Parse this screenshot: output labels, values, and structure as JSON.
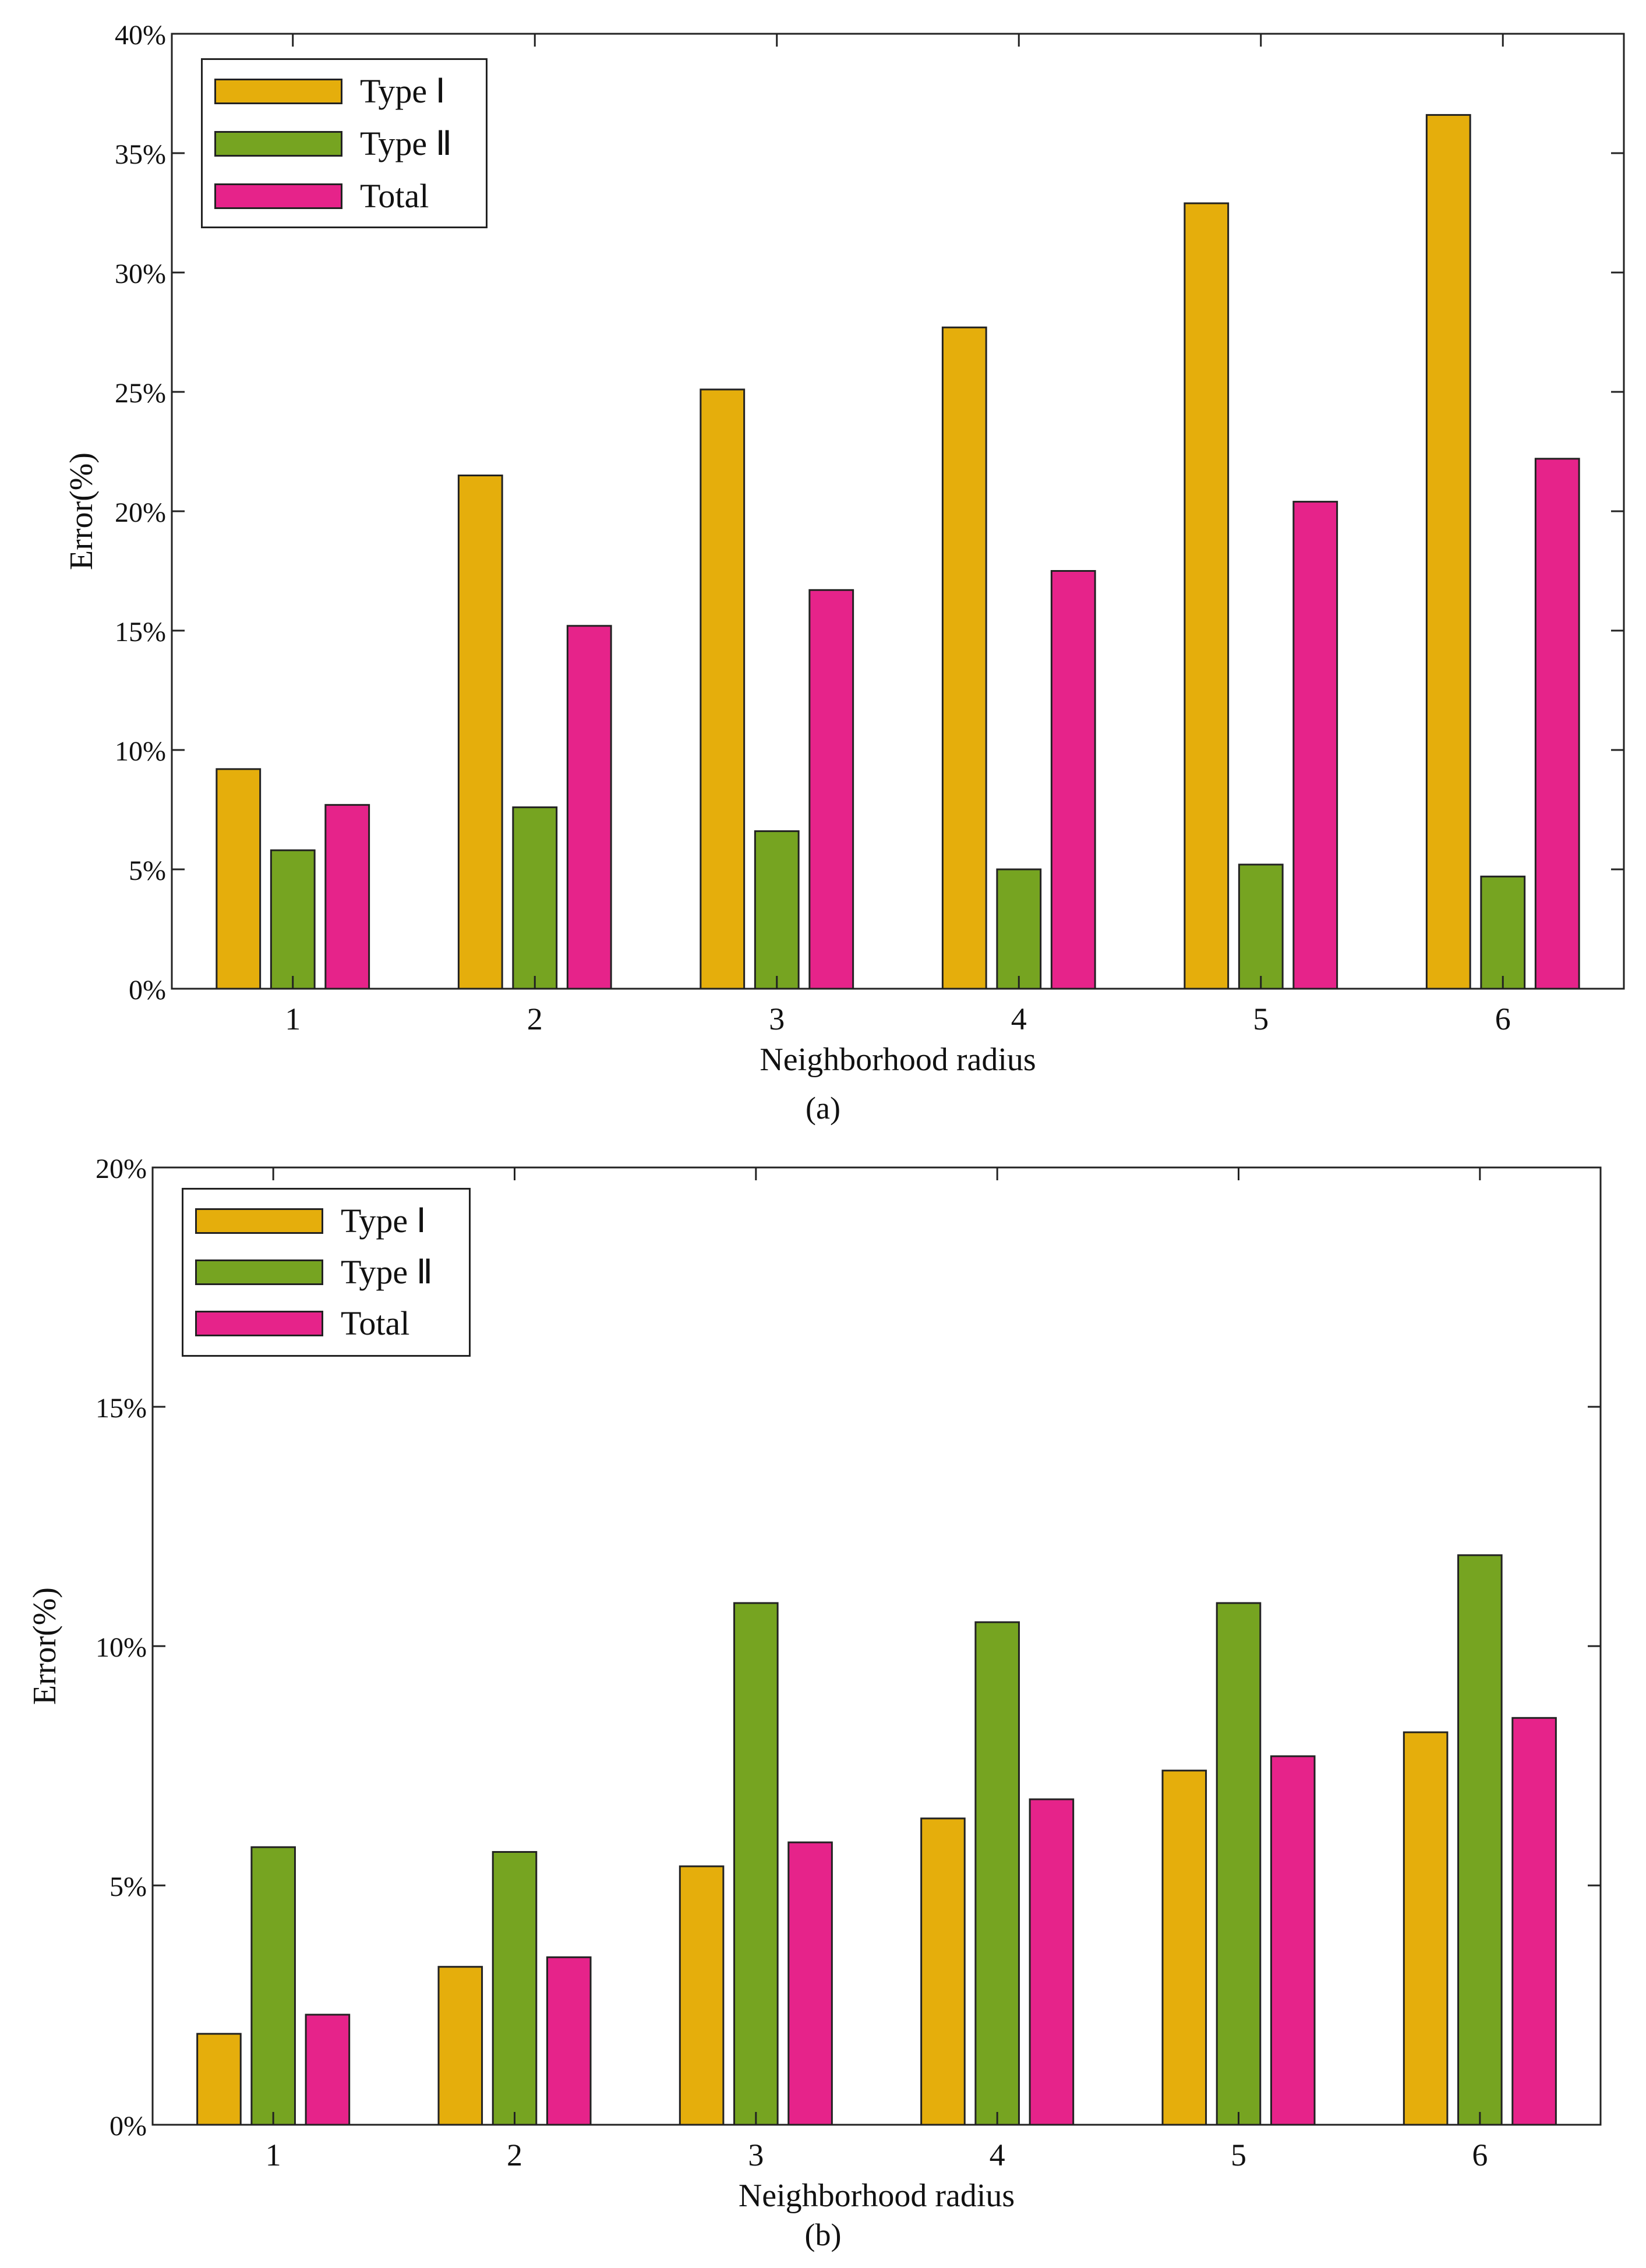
{
  "colors": {
    "type1": "#E5AE0C",
    "type2": "#76A421",
    "total": "#E6238A",
    "frame": "#222222"
  },
  "panels": [
    {
      "caption": "(a)"
    },
    {
      "caption": "(b)"
    }
  ],
  "chart_data": [
    {
      "type": "bar",
      "title": "",
      "xlabel": "Neighborhood radius",
      "ylabel": "Error(%)",
      "categories": [
        "1",
        "2",
        "3",
        "4",
        "5",
        "6"
      ],
      "ylim": [
        0,
        40
      ],
      "yticks": [
        0,
        5,
        10,
        15,
        20,
        25,
        30,
        35,
        40
      ],
      "ytick_labels": [
        "0%",
        "5%",
        "10%",
        "15%",
        "20%",
        "25%",
        "30%",
        "35%",
        "40%"
      ],
      "legend_position": "top-left",
      "grid": false,
      "series": [
        {
          "name": "Type Ⅰ",
          "color": "#E5AE0C",
          "values": [
            9.2,
            21.5,
            25.1,
            27.7,
            32.9,
            36.6
          ]
        },
        {
          "name": "Type Ⅱ",
          "color": "#76A421",
          "values": [
            5.8,
            7.6,
            6.6,
            5.0,
            5.2,
            4.7
          ]
        },
        {
          "name": "Total",
          "color": "#E6238A",
          "values": [
            7.7,
            15.2,
            16.7,
            17.5,
            20.4,
            22.2
          ]
        }
      ]
    },
    {
      "type": "bar",
      "title": "",
      "xlabel": "Neighborhood radius",
      "ylabel": "Error(%)",
      "categories": [
        "1",
        "2",
        "3",
        "4",
        "5",
        "6"
      ],
      "ylim": [
        0,
        20
      ],
      "yticks": [
        0,
        5,
        10,
        15,
        20
      ],
      "ytick_labels": [
        "0%",
        "5%",
        "10%",
        "15%",
        "20%"
      ],
      "legend_position": "top-left",
      "grid": false,
      "series": [
        {
          "name": "Type Ⅰ",
          "color": "#E5AE0C",
          "values": [
            1.9,
            3.3,
            5.4,
            6.4,
            7.4,
            8.2
          ]
        },
        {
          "name": "Type Ⅱ",
          "color": "#76A421",
          "values": [
            5.8,
            5.7,
            10.9,
            10.5,
            10.9,
            11.9
          ]
        },
        {
          "name": "Total",
          "color": "#E6238A",
          "values": [
            2.3,
            3.5,
            5.9,
            6.8,
            7.7,
            8.5
          ]
        }
      ]
    }
  ]
}
